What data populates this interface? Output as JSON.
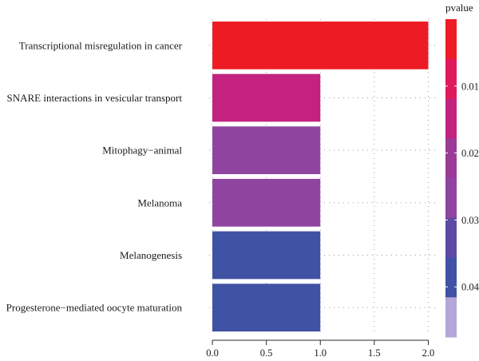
{
  "chart_data": {
    "type": "bar",
    "orientation": "horizontal",
    "categories": [
      "Transcriptional misregulation in cancer",
      "SNARE interactions in vesicular transport",
      "Mitophagy−animal",
      "Melanoma",
      "Melanogenesis",
      "Progesterone−mediated oocyte maturation"
    ],
    "values": [
      2,
      1,
      1,
      1,
      1,
      1
    ],
    "pvalues": [
      0.0015,
      0.018,
      0.032,
      0.032,
      0.045,
      0.046
    ],
    "x_ticks": [
      "0.0",
      "0.5",
      "1.0",
      "1.5",
      "2.0"
    ],
    "xlim": [
      0,
      2.1
    ],
    "grid": "dotted",
    "legend": {
      "title": "pvalue",
      "placement": "right",
      "ticks": [
        {
          "value": 0.01,
          "label": "0.01"
        },
        {
          "value": 0.02,
          "label": "0.02"
        },
        {
          "value": 0.03,
          "label": "0.03"
        },
        {
          "value": 0.04,
          "label": "0.04"
        }
      ],
      "range": [
        0,
        0.0475
      ],
      "colors": [
        "#ed1c24",
        "#e0195e",
        "#c3227f",
        "#9c3a98",
        "#8f45a0",
        "#5e49a3",
        "#3f52a4",
        "#b3a6d9"
      ]
    }
  }
}
